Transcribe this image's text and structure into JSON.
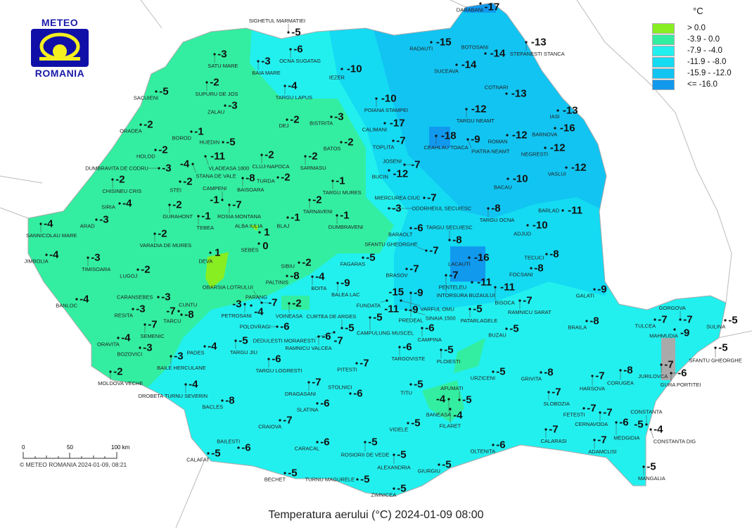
{
  "logo": {
    "top": "METEO",
    "bottom": "ROMANIA"
  },
  "title": "Temperatura aerului (°C) 2024-01-09 08:00",
  "copyright": "© METEO ROMANIA 2024-01-09, 08:21",
  "scale_bar": {
    "labels": [
      "0",
      "50",
      "100 km"
    ]
  },
  "legend": {
    "unit": "°C",
    "classes": [
      {
        "label": "> 0.0",
        "color": "#88ee22"
      },
      {
        "label": "-3.9 - 0.0",
        "color": "#33eea0"
      },
      {
        "label": "-7.9 - -4.0",
        "color": "#22f0ee"
      },
      {
        "label": "-11.9 - -8.0",
        "color": "#14daf2"
      },
      {
        "label": "-15.9 - -12.0",
        "color": "#12c4f2"
      },
      {
        "label": "<= -16.0",
        "color": "#1199ee"
      }
    ]
  },
  "stations": [
    {
      "name": "SACUIENI",
      "value": "-5"
    },
    {
      "name": "ORADEA",
      "value": "-2"
    },
    {
      "name": "SATU MARE",
      "value": "-3"
    },
    {
      "name": "BAIA MARE",
      "value": "-3"
    },
    {
      "name": "SIGHETUL MARMATIEI",
      "value": "-5"
    },
    {
      "name": "OCNA SUGATAG",
      "value": "-6"
    },
    {
      "name": "SUPURU DE JOS",
      "value": "-2"
    },
    {
      "name": "TARGU LAPUS",
      "value": "-4"
    },
    {
      "name": "IEZER",
      "value": "-10"
    },
    {
      "name": "POIANA STAMPEI",
      "value": "-10"
    },
    {
      "name": "ZALAU",
      "value": "-3"
    },
    {
      "name": "DEJ",
      "value": "-2"
    },
    {
      "name": "BISTRITA",
      "value": "-3"
    },
    {
      "name": "CALIMANI",
      "value": "-17"
    },
    {
      "name": "BOROD",
      "value": "-1"
    },
    {
      "name": "VLADEASA 1800",
      "value": "-11"
    },
    {
      "name": "HUEDIN",
      "value": "-5"
    },
    {
      "name": "CLUJ-NAPOCA",
      "value": "-2"
    },
    {
      "name": "SARMASU",
      "value": "-2"
    },
    {
      "name": "BATOS",
      "value": "-2"
    },
    {
      "name": "TOPLITA",
      "value": "-7"
    },
    {
      "name": "HOLOD",
      "value": "-2"
    },
    {
      "name": "DUMBRAVITA DE CODRU",
      "value": "-3"
    },
    {
      "name": "STANA DE VALE",
      "value": "-4"
    },
    {
      "name": "STEI",
      "value": "-2"
    },
    {
      "name": "CHISINEU CRIS",
      "value": "-2"
    },
    {
      "name": "BAISOARA",
      "value": "-8"
    },
    {
      "name": "TURDA",
      "value": "-2"
    },
    {
      "name": "TARGU MURES",
      "value": "-1"
    },
    {
      "name": "BUCIN",
      "value": "-12"
    },
    {
      "name": "JOSENI",
      "value": "-7"
    },
    {
      "name": "SIRIA",
      "value": "-4"
    },
    {
      "name": "GURAHONT",
      "value": "-2"
    },
    {
      "name": "CAMPENI",
      "value": "-1"
    },
    {
      "name": "ROSIA MONTANA",
      "value": "-7"
    },
    {
      "name": "TARNAVENI",
      "value": "-2"
    },
    {
      "name": "ODORHEIUL SECUIESC",
      "value": "-3"
    },
    {
      "name": "MIERCUREA CIUC",
      "value": "-7"
    },
    {
      "name": "SANNICOLAU MARE",
      "value": "-4"
    },
    {
      "name": "ARAD",
      "value": "-3"
    },
    {
      "name": "VARADIA DE MURES",
      "value": "-2"
    },
    {
      "name": "TEBEA",
      "value": "-1"
    },
    {
      "name": "DUMBRAVENI",
      "value": "-1"
    },
    {
      "name": "BLAJ",
      "value": "-1"
    },
    {
      "name": "ALBA IULIA",
      "value": "1"
    },
    {
      "name": "SEBES",
      "value": "0"
    },
    {
      "name": "JIMBOLIA",
      "value": "-4"
    },
    {
      "name": "TIMISOARA",
      "value": "-3"
    },
    {
      "name": "DEVA",
      "value": "1"
    },
    {
      "name": "LUGOJ",
      "value": "-2"
    },
    {
      "name": "SIBIU",
      "value": "-2"
    },
    {
      "name": "FAGARAS",
      "value": "-5"
    },
    {
      "name": "BARAOLT",
      "value": "-6"
    },
    {
      "name": "SFANTU GHEORGHE",
      "value": "-7"
    },
    {
      "name": "TARGU SECUIESC",
      "value": "-8"
    },
    {
      "name": "LACAUTI",
      "value": "-16"
    },
    {
      "name": "TARGU OCNA",
      "value": "-8"
    },
    {
      "name": "BACAU",
      "value": "-10"
    },
    {
      "name": "BARLAD",
      "value": "-11"
    },
    {
      "name": "ADJUD",
      "value": "-10"
    },
    {
      "name": "TECUCI",
      "value": "-8"
    },
    {
      "name": "FOCSANI",
      "value": "-8"
    },
    {
      "name": "BRASOV",
      "value": "-7"
    },
    {
      "name": "INTORSURA BUZAULUI",
      "value": "-7"
    },
    {
      "name": "PENTELEU",
      "value": "-11"
    },
    {
      "name": "BISOCA",
      "value": "-11"
    },
    {
      "name": "PALTINIS",
      "value": "-8"
    },
    {
      "name": "BOITA",
      "value": "-4"
    },
    {
      "name": "BALEA LAC",
      "value": "-9"
    },
    {
      "name": "VARFUL OMU",
      "value": "-15"
    },
    {
      "name": "PREDEAL",
      "value": "-9"
    },
    {
      "name": "SINAIA 1500",
      "value": "-9"
    },
    {
      "name": "FUNDATA",
      "value": "-11"
    },
    {
      "name": "CURTEA DE ARGES",
      "value": "-5"
    },
    {
      "name": "CAMPULUNG MUSCEL",
      "value": "-5"
    },
    {
      "name": "RAMNICU VALCEA",
      "value": "-6"
    },
    {
      "name": "DEDULESTI MORARESTI",
      "value": "-7"
    },
    {
      "name": "CAMPINA",
      "value": "-6"
    },
    {
      "name": "TARGOVISTE",
      "value": "-6"
    },
    {
      "name": "PLOIESTI",
      "value": "-5"
    },
    {
      "name": "PATARLAGELE",
      "value": "-5"
    },
    {
      "name": "BUZAU",
      "value": "-5"
    },
    {
      "name": "RAMNICU SARAT",
      "value": "-7"
    },
    {
      "name": "GALATI",
      "value": "-9"
    },
    {
      "name": "BRAILA",
      "value": "-8"
    },
    {
      "name": "TULCEA",
      "value": "-7"
    },
    {
      "name": "GORGOVA",
      "value": "-7"
    },
    {
      "name": "MAHMUDIA",
      "value": "-9"
    },
    {
      "name": "SULINA",
      "value": "-5"
    },
    {
      "name": "SFANTU GHEORGHE",
      "value": "-5"
    },
    {
      "name": "JURILOVCA",
      "value": "-7"
    },
    {
      "name": "GURA PORTITEI",
      "value": "-6"
    },
    {
      "name": "CORUGEA",
      "value": "-8"
    },
    {
      "name": "HARSOVA",
      "value": "-7"
    },
    {
      "name": "CERNAVODA",
      "value": "-7"
    },
    {
      "name": "FETESTI",
      "value": "-7"
    },
    {
      "name": "MEDGIDIA",
      "value": "-6"
    },
    {
      "name": "CONSTANTA",
      "value": "-5"
    },
    {
      "name": "CONSTANTA DIG",
      "value": "-4"
    },
    {
      "name": "ADAMCLISI",
      "value": "-7"
    },
    {
      "name": "MANGALIA",
      "value": "-5"
    },
    {
      "name": "SLOBOZIA",
      "value": "-7"
    },
    {
      "name": "GRIVITA",
      "value": "-8"
    },
    {
      "name": "URZICENI",
      "value": "-5"
    },
    {
      "name": "CALARASI",
      "value": "-7"
    },
    {
      "name": "OLTENITA",
      "value": "-6"
    },
    {
      "name": "AFUMATI",
      "value": "-5"
    },
    {
      "name": "BANEASA",
      "value": "-4"
    },
    {
      "name": "FILARET",
      "value": "-4"
    },
    {
      "name": "TITU",
      "value": "-5"
    },
    {
      "name": "VIDELE",
      "value": "-5"
    },
    {
      "name": "GIURGIU",
      "value": "-5"
    },
    {
      "name": "ALEXANDRIA",
      "value": "-5"
    },
    {
      "name": "ZIMNICEA",
      "value": "-5"
    },
    {
      "name": "ROSIORII DE VEDE",
      "value": "-5"
    },
    {
      "name": "TURNU MAGURELE",
      "value": "-5"
    },
    {
      "name": "STOLNICI",
      "value": "-6"
    },
    {
      "name": "SLATINA",
      "value": "-6"
    },
    {
      "name": "DRAGASANI",
      "value": "-7"
    },
    {
      "name": "PITESTI",
      "value": "-7"
    },
    {
      "name": "CARACAL",
      "value": "-6"
    },
    {
      "name": "CRAIOVA",
      "value": "-7"
    },
    {
      "name": "BECHET",
      "value": "-5"
    },
    {
      "name": "BAILESTI",
      "value": "-6"
    },
    {
      "name": "CALAFAT",
      "value": "-5"
    },
    {
      "name": "BACLES",
      "value": "-8"
    },
    {
      "name": "TARGU LOGRESTI",
      "value": "-6"
    },
    {
      "name": "POLOVRAGI",
      "value": "-6"
    },
    {
      "name": "TARGU JIU",
      "value": "-5"
    },
    {
      "name": "PADES",
      "value": "-4"
    },
    {
      "name": "BAILE HERCULANE",
      "value": "-3"
    },
    {
      "name": "DROBETA TURNU SEVERIN",
      "value": "-4"
    },
    {
      "name": "MOLDOVA VECHE",
      "value": "-2"
    },
    {
      "name": "BOZOVICI",
      "value": "-3"
    },
    {
      "name": "ORAVITA",
      "value": "-4"
    },
    {
      "name": "SEMENIC",
      "value": "-7"
    },
    {
      "name": "RESITA",
      "value": "-3"
    },
    {
      "name": "CARANSEBES",
      "value": "-3"
    },
    {
      "name": "CUNTU",
      "value": "-7"
    },
    {
      "name": "TARCU",
      "value": "-8"
    },
    {
      "name": "BANLOC",
      "value": "-4"
    },
    {
      "name": "PETROSANI",
      "value": "-3"
    },
    {
      "name": "PARANG",
      "value": "-4"
    },
    {
      "name": "OBARSIA LOTRULUI",
      "value": "-7"
    },
    {
      "name": "VOINEASA",
      "value": "-2"
    },
    {
      "name": "RADAUTI",
      "value": "-15"
    },
    {
      "name": "DARABANI",
      "value": "-17"
    },
    {
      "name": "STEFANESTI STANCA",
      "value": "-13"
    },
    {
      "name": "BOTOSANI",
      "value": "-14"
    },
    {
      "name": "SUCEAVA",
      "value": "-14"
    },
    {
      "name": "COTNARI",
      "value": "-13"
    },
    {
      "name": "TARGU NEAMT",
      "value": "-12"
    },
    {
      "name": "CEAHLAU TOACA",
      "value": "-18"
    },
    {
      "name": "PIATRA NEAMT",
      "value": "-9"
    },
    {
      "name": "ROMAN",
      "value": "-12"
    },
    {
      "name": "IASI",
      "value": "-13"
    },
    {
      "name": "BARNOVA",
      "value": "-16"
    },
    {
      "name": "NEGRESTI",
      "value": "-12"
    },
    {
      "name": "VASLUI",
      "value": "-12"
    }
  ]
}
